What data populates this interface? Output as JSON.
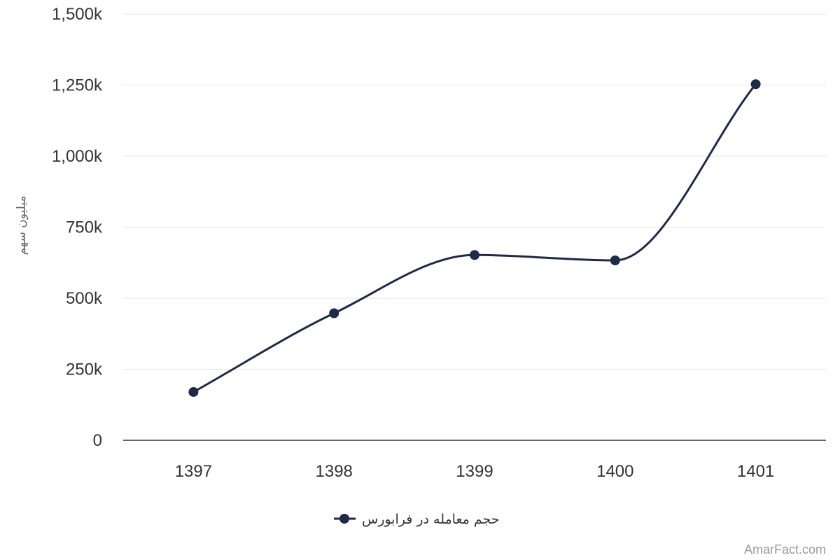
{
  "chart_data": {
    "type": "line",
    "categories": [
      "1397",
      "1398",
      "1399",
      "1400",
      "1401"
    ],
    "series": [
      {
        "name": "حجم معامله در فرابورس",
        "values": [
          170,
          447,
          652,
          633,
          1253
        ],
        "color": "#1e2a4a"
      }
    ],
    "title": "",
    "xlabel": "",
    "ylabel": "میلیون سهم",
    "ylim": [
      0,
      1500
    ],
    "yticks": [
      0,
      250,
      500,
      750,
      1000,
      1250,
      1500
    ],
    "ytick_labels": [
      "0",
      "250k",
      "500k",
      "750k",
      "1,000k",
      "1,250k",
      "1,500k"
    ],
    "grid": true,
    "legend_position": "bottom-center"
  },
  "credit": "AmarFact.com"
}
